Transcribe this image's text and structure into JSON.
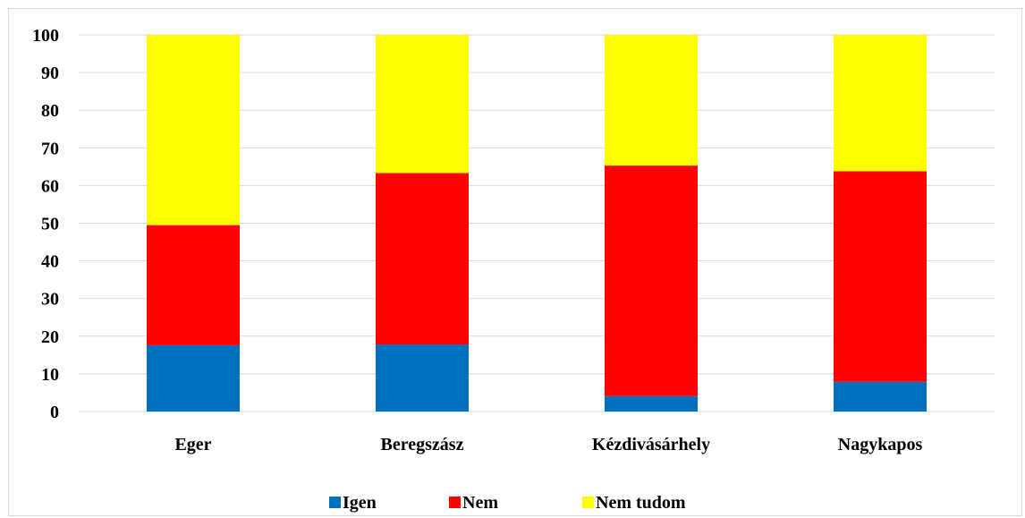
{
  "chart_data": {
    "type": "bar",
    "stacked": true,
    "categories": [
      "Eger",
      "Beregszász",
      "Kézdivásárhely",
      "Nagykapos"
    ],
    "series": [
      {
        "name": "Igen",
        "color": "#0070c0",
        "values": [
          17.6,
          17.8,
          4.1,
          7.9
        ]
      },
      {
        "name": "Nem",
        "color": "#ff0000",
        "values": [
          31.9,
          45.5,
          61.2,
          55.9
        ]
      },
      {
        "name": "Nem tudom",
        "color": "#ffff00",
        "values": [
          50.5,
          36.7,
          34.7,
          36.2
        ]
      }
    ],
    "title": "",
    "xlabel": "",
    "ylabel": "",
    "ylim": [
      0,
      100
    ],
    "yticks": [
      0,
      10,
      20,
      30,
      40,
      50,
      60,
      70,
      80,
      90,
      100
    ],
    "grid": true,
    "legend_position": "bottom"
  }
}
